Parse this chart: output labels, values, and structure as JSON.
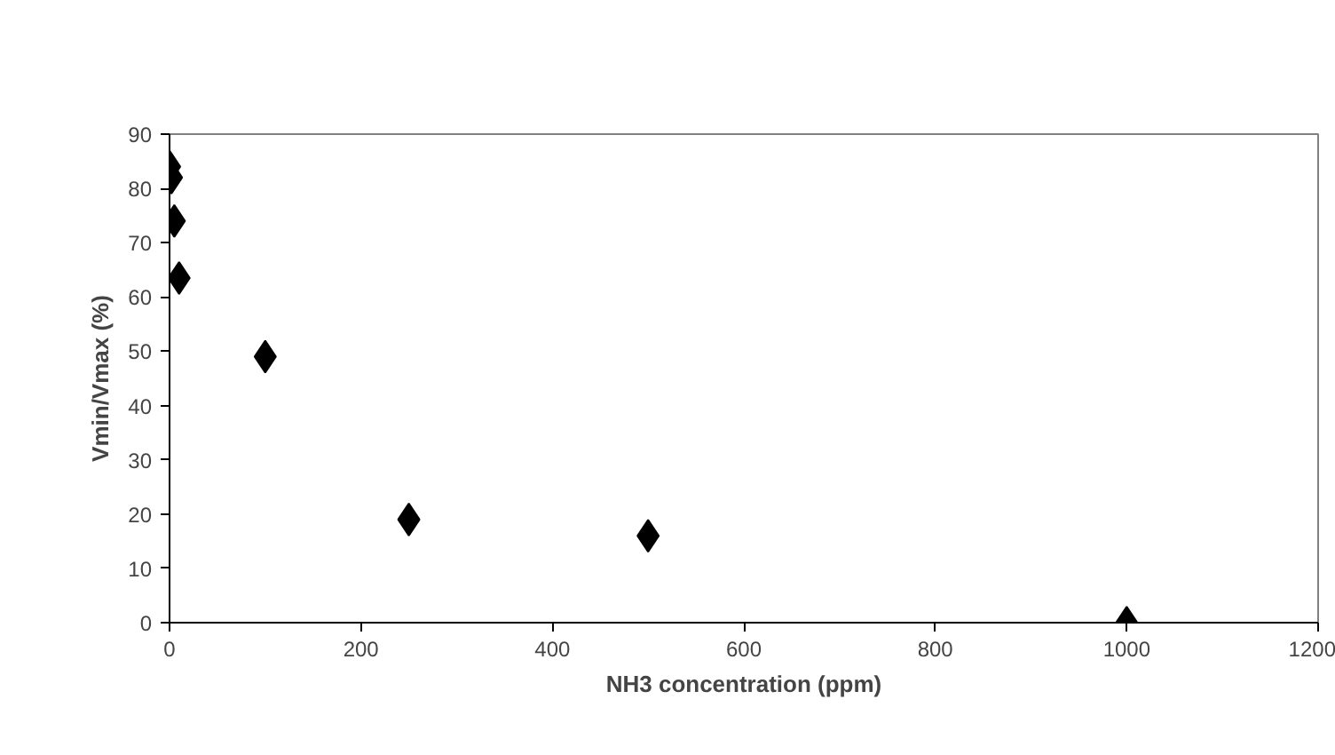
{
  "chart_data": {
    "type": "scatter",
    "xlabel": "NH3 concentration (ppm)",
    "ylabel": "Vmin/Vmax (%)",
    "x": [
      0,
      2,
      5,
      10,
      100,
      250,
      500,
      1000
    ],
    "values": [
      84,
      82,
      74,
      63.5,
      49,
      19,
      16,
      0
    ],
    "color": "#000000",
    "marker": "diamond",
    "grid": false,
    "xlim": [
      0,
      1200
    ],
    "xticks": [
      0,
      200,
      400,
      600,
      800,
      1000,
      1200
    ],
    "ylim": [
      0,
      90
    ],
    "yticks": [
      0,
      10,
      20,
      30,
      40,
      50,
      60,
      70,
      80,
      90
    ]
  }
}
